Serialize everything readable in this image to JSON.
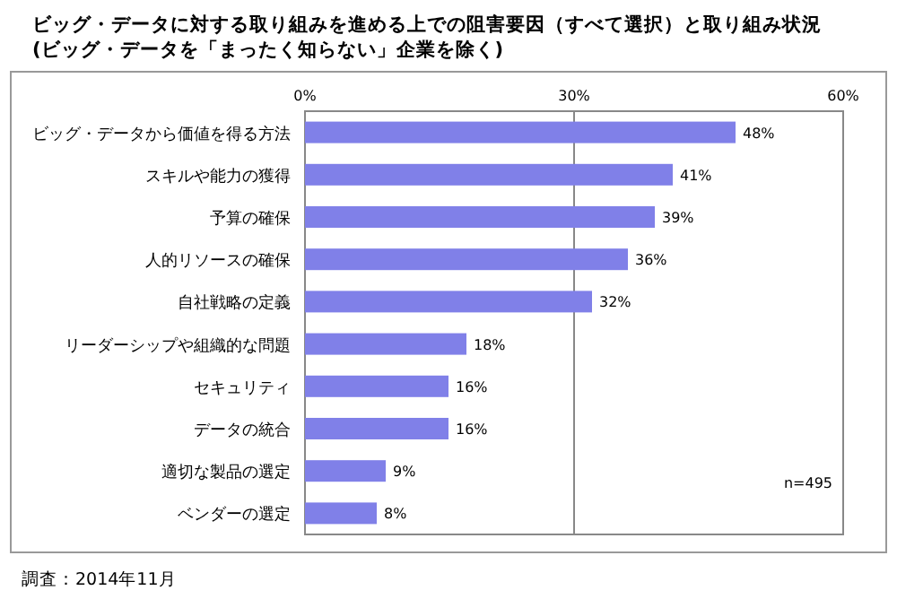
{
  "chart_data": {
    "type": "bar",
    "orientation": "horizontal",
    "title": "ビッグ・データに対する取り組みを進める上での阻害要因（すべて選択）と取り組み状況",
    "subtitle": "(ビッグ・データを「まったく知らない」企業を除く)",
    "categories": [
      "ビッグ・データから価値を得る方法",
      "スキルや能力の獲得",
      "予算の確保",
      "人的リソースの確保",
      "自社戦略の定義",
      "リーダーシップや組織的な問題",
      "セキュリティ",
      "データの統合",
      "適切な製品の選定",
      "ベンダーの選定"
    ],
    "values": [
      48,
      41,
      39,
      36,
      32,
      18,
      16,
      16,
      9,
      8
    ],
    "value_labels": [
      "48%",
      "41%",
      "39%",
      "36%",
      "32%",
      "18%",
      "16%",
      "16%",
      "9%",
      "8%"
    ],
    "color": "#8080e8",
    "xlim": [
      0,
      60
    ],
    "xticks": [
      {
        "value": 0,
        "label": "0%"
      },
      {
        "value": 30,
        "label": "30%"
      },
      {
        "value": 60,
        "label": "60%"
      }
    ],
    "grid": "x",
    "annotations": [
      "n=495",
      "調査：2014年11月"
    ]
  }
}
